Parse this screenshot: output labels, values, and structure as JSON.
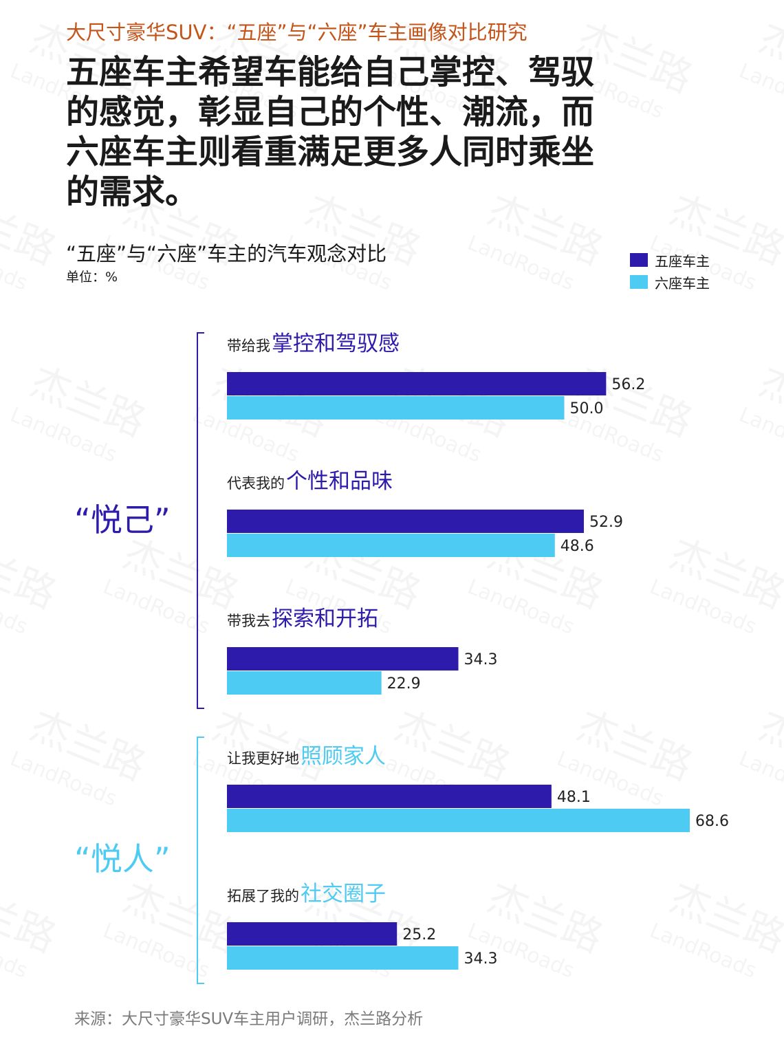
{
  "header": {
    "subtitle": "大尺寸豪华SUV：“五座”与“六座”车主画像对比研究",
    "headline_lines": [
      "五座车主希望车能给自己掌控、驾驭",
      "的感觉，彰显自己的个性、潮流，而",
      "六座车主则看重满足更多人同时乘坐",
      "的需求。"
    ]
  },
  "chart_title": "“五座”与“六座”车主的汽车观念对比",
  "unit": "单位：%",
  "watermark_text": [
    "杰兰路",
    "LandRoads"
  ],
  "colors": {
    "five_seat": "#2d1bab",
    "six_seat": "#4ecbf2",
    "accent": "#c4541a",
    "bracket_top": "#2d1bab",
    "bracket_bottom": "#4ecbf2"
  },
  "chart_data": {
    "type": "bar",
    "orientation": "horizontal",
    "series": [
      {
        "name": "五座车主",
        "color": "#2d1bab",
        "values": [
          56.2,
          52.9,
          34.3,
          48.1,
          25.2
        ]
      },
      {
        "name": "六座车主",
        "color": "#4ecbf2",
        "values": [
          50.0,
          48.6,
          22.9,
          68.6,
          34.3
        ]
      }
    ],
    "categories": [
      {
        "prefix": "带给我",
        "highlight": "掌控和驾驭感",
        "group": 0
      },
      {
        "prefix": "代表我的",
        "highlight": "个性和品味",
        "group": 0
      },
      {
        "prefix": "带我去",
        "highlight": "探索和开拓",
        "group": 0
      },
      {
        "prefix": "让我更好地",
        "highlight": "照顾家人",
        "group": 1
      },
      {
        "prefix": "拓展了我的",
        "highlight": "社交圈子",
        "group": 1
      }
    ],
    "groups": [
      {
        "label": "“悦己”",
        "color": "#2d1bab"
      },
      {
        "label": "“悦人”",
        "color": "#4ecbf2"
      }
    ],
    "value_labels": [
      "56.2",
      "50.0",
      "52.9",
      "48.6",
      "34.3",
      "22.9",
      "48.1",
      "68.6",
      "25.2",
      "34.3"
    ],
    "xlim": [
      0,
      68.6
    ],
    "legend": "top-right",
    "grid": false
  },
  "source": "来源：大尺寸豪华SUV车主用户调研，杰兰路分析"
}
